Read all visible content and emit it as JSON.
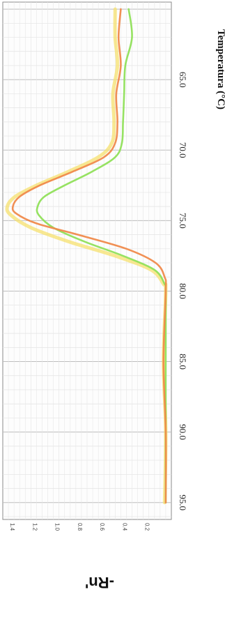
{
  "chart_data": {
    "type": "line",
    "title": "",
    "xlabel": "Temperatura (°C)",
    "ylabel": "-Rn'",
    "xlim": [
      59.5,
      96.2
    ],
    "ylim": [
      -0.05,
      1.45
    ],
    "x_ticks": [
      "65.0",
      "70.0",
      "75.0",
      "80.0",
      "85.0",
      "90.0",
      "95.0"
    ],
    "y_ticks": [
      "0.2",
      "0.4",
      "0.6",
      "0.8",
      "1.0",
      "1.2",
      "1.4"
    ],
    "grid": true,
    "orientation": "rotated 90° (temperature axis runs top-to-bottom)",
    "series": [
      {
        "color": "#f08a4b",
        "x": [
          60,
          62,
          64,
          66,
          68,
          69.5,
          70.5,
          71.5,
          72.5,
          73.3,
          74.0,
          74.5,
          75.2,
          76.0,
          77.0,
          78.0,
          79.0,
          80,
          85,
          90,
          95
        ],
        "y": [
          0.4,
          0.42,
          0.4,
          0.44,
          0.43,
          0.45,
          0.55,
          0.82,
          1.12,
          1.3,
          1.36,
          1.33,
          1.15,
          0.78,
          0.35,
          0.09,
          0.01,
          0.0,
          0.02,
          0.0,
          0.0
        ]
      },
      {
        "color": "#f5e06e",
        "x": [
          60,
          62,
          64,
          66,
          68,
          69.5,
          70.5,
          71.5,
          72.5,
          73.3,
          74.0,
          74.6,
          75.5,
          76.5,
          77.5,
          78.5,
          79.5,
          80,
          85,
          90,
          95
        ],
        "y": [
          0.45,
          0.45,
          0.43,
          0.47,
          0.46,
          0.48,
          0.6,
          0.86,
          1.15,
          1.34,
          1.41,
          1.38,
          1.2,
          0.86,
          0.45,
          0.13,
          0.02,
          0.0,
          0.02,
          0.0,
          0.01
        ]
      },
      {
        "color": "#90e05a",
        "x": [
          60,
          62,
          64,
          66,
          68,
          69.5,
          70.5,
          71.5,
          72.5,
          73.3,
          74.0,
          74.6,
          75.5,
          76.5,
          77.5,
          78.5,
          79.5,
          80,
          85,
          90,
          95
        ],
        "y": [
          0.33,
          0.3,
          0.36,
          0.37,
          0.38,
          0.39,
          0.45,
          0.65,
          0.9,
          1.08,
          1.14,
          1.13,
          1.0,
          0.72,
          0.38,
          0.1,
          0.01,
          0.0,
          0.0,
          0.0,
          0.0
        ]
      }
    ]
  }
}
